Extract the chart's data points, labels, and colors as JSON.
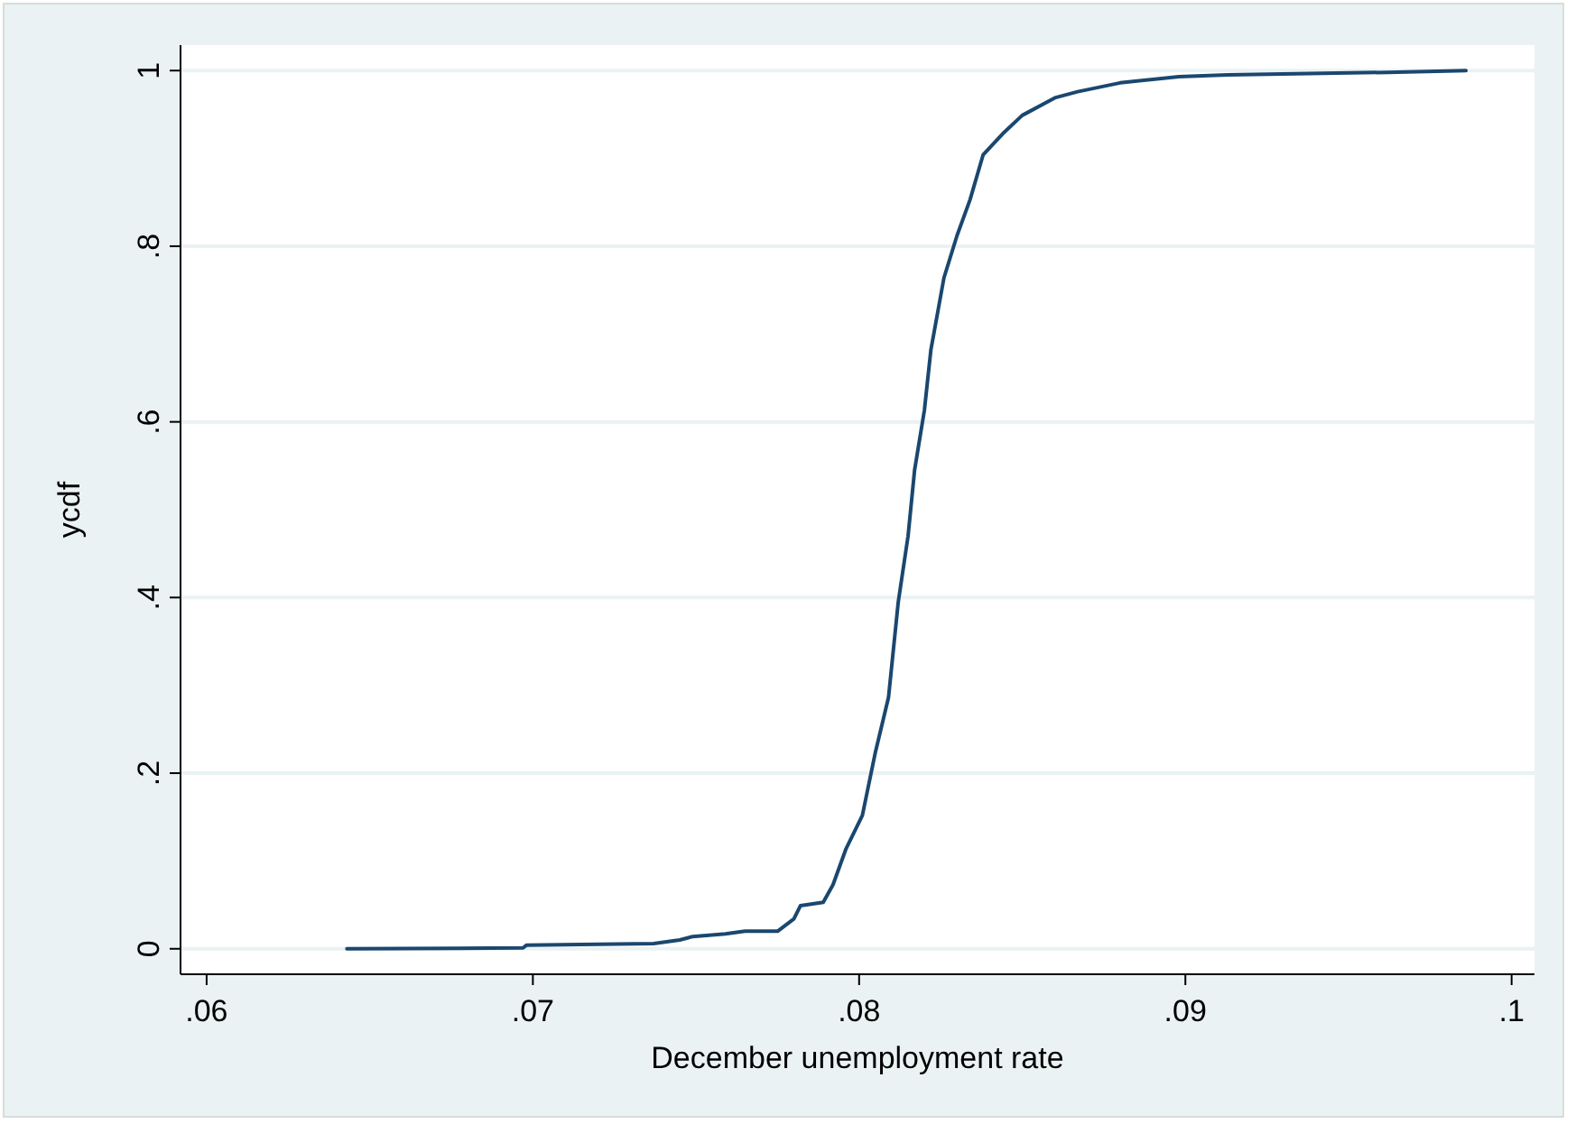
{
  "chart_data": {
    "type": "line",
    "xlabel": "December unemployment rate",
    "ylabel": "ycdf",
    "x": [
      0.0643,
      0.0697,
      0.0698,
      0.0737,
      0.0745,
      0.0749,
      0.0759,
      0.0765,
      0.0775,
      0.078,
      0.0782,
      0.0789,
      0.0792,
      0.0796,
      0.0801,
      0.0805,
      0.0809,
      0.0812,
      0.0815,
      0.0817,
      0.082,
      0.0822,
      0.0826,
      0.083,
      0.0834,
      0.0838,
      0.0844,
      0.085,
      0.086,
      0.0867,
      0.088,
      0.0898,
      0.0913,
      0.0962,
      0.0986
    ],
    "series": [
      {
        "color": "#1a476f",
        "values": [
          0,
          0.001,
          0.004,
          0.006,
          0.01,
          0.014,
          0.017,
          0.02,
          0.02,
          0.034,
          0.049,
          0.053,
          0.073,
          0.114,
          0.152,
          0.224,
          0.286,
          0.395,
          0.47,
          0.545,
          0.613,
          0.682,
          0.764,
          0.812,
          0.853,
          0.904,
          0.928,
          0.949,
          0.969,
          0.976,
          0.986,
          0.993,
          0.995,
          0.998,
          1.0
        ]
      }
    ],
    "xlim": [
      0.0592,
      0.1007
    ],
    "ylim": [
      -0.029,
      1.029
    ],
    "xticks": [
      {
        "value": 0.06,
        "label": ".06"
      },
      {
        "value": 0.07,
        "label": ".07"
      },
      {
        "value": 0.08,
        "label": ".08"
      },
      {
        "value": 0.09,
        "label": ".09"
      },
      {
        "value": 0.1,
        "label": ".1"
      }
    ],
    "yticks": [
      0,
      {
        "value": 0.2,
        "label": ".2"
      },
      {
        "value": 0.4,
        "label": ".4"
      },
      {
        "value": 0.6,
        "label": ".6"
      },
      {
        "value": 0.8,
        "label": ".8"
      },
      1
    ],
    "grid": "y",
    "marker": "none",
    "line_style": "solid"
  }
}
